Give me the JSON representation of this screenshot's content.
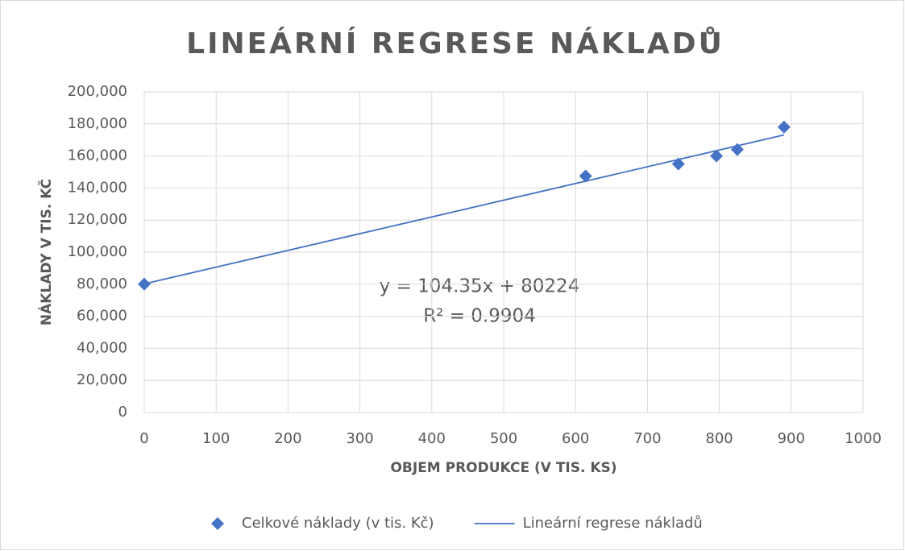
{
  "chart_data": {
    "type": "scatter",
    "title": "LINEÁRNÍ REGRESE NÁKLADŮ",
    "x_label": "OBJEM PRODUKCE (V TIS. KS)",
    "y_label": "NÁKLADY V TIS. KČ",
    "series": [
      {
        "name": "Celkové náklady (v tis. Kč)",
        "type": "scatter",
        "marker": "diamond",
        "color": "#4472c4",
        "x": [
          0,
          614,
          743,
          796,
          825,
          890
        ],
        "values": [
          80000,
          147500,
          155000,
          160000,
          164000,
          178000
        ]
      },
      {
        "name": "Lineární regrese nákladů",
        "type": "line",
        "color": "#4472c4",
        "x": [
          0,
          890
        ],
        "values": [
          80224,
          173095.5
        ]
      }
    ],
    "annotations": [
      {
        "text": "y = 104.35x + 80224"
      },
      {
        "text": "R² = 0.9904"
      }
    ],
    "xlim": [
      0,
      1000
    ],
    "xticks": [
      0,
      100,
      200,
      300,
      400,
      500,
      600,
      700,
      800,
      900,
      1000
    ],
    "ylim": [
      0,
      200000
    ],
    "yticks": [
      0,
      {
        "value": 20000,
        "label": "20,000"
      },
      {
        "value": 40000,
        "label": "40,000"
      },
      {
        "value": 60000,
        "label": "60,000"
      },
      {
        "value": 80000,
        "label": "80,000"
      },
      {
        "value": 100000,
        "label": "100,000"
      },
      {
        "value": 120000,
        "label": "120,000"
      },
      {
        "value": 140000,
        "label": "140,000"
      },
      {
        "value": 160000,
        "label": "160,000"
      },
      {
        "value": 180000,
        "label": "180,000"
      },
      {
        "value": 200000,
        "label": "200,000"
      }
    ],
    "grid": true,
    "legend": "bottom"
  }
}
